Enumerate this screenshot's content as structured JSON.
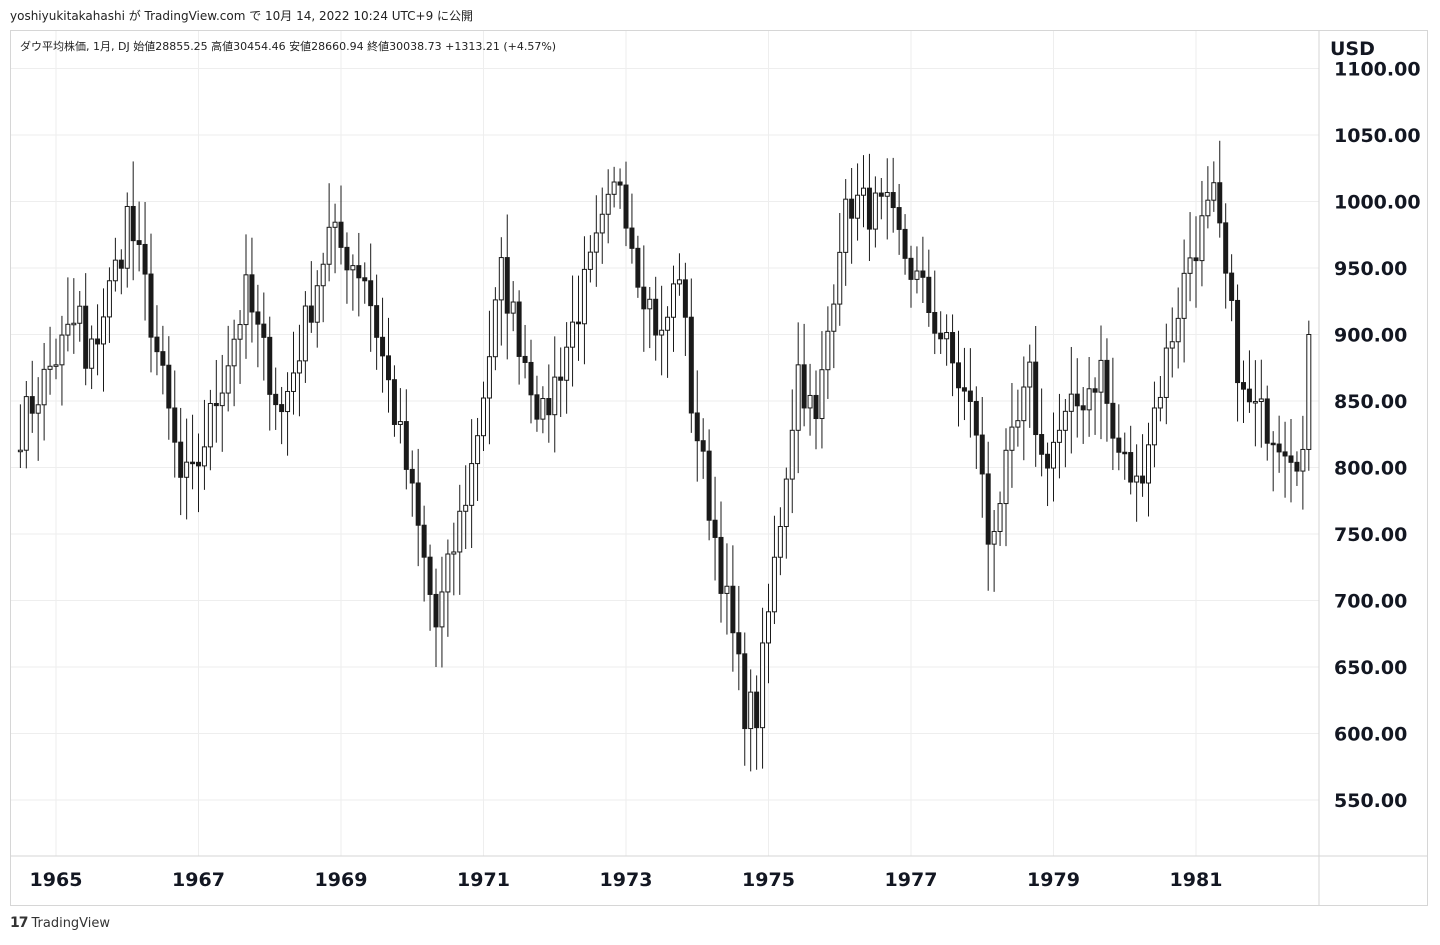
{
  "header": {
    "publish_line": "yoshiyukitakahashi が TradingView.com で 10月 14, 2022 10:24 UTC+9 に公開"
  },
  "legend": {
    "text": "ダウ平均株価, 1月, DJ  始値28855.25  高値30454.46  安値28660.94  終値30038.73  +1313.21 (+4.57%)"
  },
  "currency": "USD",
  "footer": {
    "logo": "17",
    "brand": "TradingView"
  },
  "colors": {
    "candle": "#1a1a1a",
    "grid": "#eeeeee",
    "border": "#d6d6d6"
  },
  "chart_data": {
    "type": "candlestick",
    "title": "",
    "xlabel": "",
    "ylabel": "",
    "ylim": [
      500,
      1100
    ],
    "y_ticks": [
      550,
      600,
      650,
      700,
      750,
      800,
      850,
      900,
      950,
      1000,
      1050,
      1100
    ],
    "y_tick_labels": [
      "550.00",
      "600.00",
      "650.00",
      "700.00",
      "750.00",
      "800.00",
      "850.00",
      "900.00",
      "950.00",
      "1000.00",
      "1050.00",
      "1100.00"
    ],
    "x_ticks": [
      1965,
      1967,
      1969,
      1971,
      1973,
      1975,
      1977,
      1979,
      1981
    ],
    "x_tick_labels": [
      "1965",
      "1967",
      "1969",
      "1971",
      "1973",
      "1975",
      "1977",
      "1979",
      "1981"
    ],
    "xlim": [
      1964.4,
      1982.8
    ],
    "grid": true,
    "price_path": [
      [
        "1964-07",
        830
      ],
      [
        "1964-12",
        875
      ],
      [
        "1965-05",
        915
      ],
      [
        "1965-06",
        870
      ],
      [
        "1965-12",
        965
      ],
      [
        "1966-01",
        990
      ],
      [
        "1966-04",
        935
      ],
      [
        "1966-10",
        790
      ],
      [
        "1966-12",
        790
      ],
      [
        "1967-09",
        930
      ],
      [
        "1968-03",
        840
      ],
      [
        "1968-11",
        975
      ],
      [
        "1969-05",
        945
      ],
      [
        "1969-12",
        800
      ],
      [
        "1970-05",
        680
      ],
      [
        "1970-11",
        800
      ],
      [
        "1971-04",
        945
      ],
      [
        "1971-11",
        835
      ],
      [
        "1972-12",
        1020
      ],
      [
        "1973-03",
        950
      ],
      [
        "1973-07",
        895
      ],
      [
        "1973-10",
        950
      ],
      [
        "1973-12",
        850
      ],
      [
        "1974-09",
        620
      ],
      [
        "1974-11",
        615
      ],
      [
        "1975-06",
        875
      ],
      [
        "1975-09",
        830
      ],
      [
        "1976-01",
        975
      ],
      [
        "1976-03",
        1000
      ],
      [
        "1976-09",
        990
      ],
      [
        "1977-06",
        900
      ],
      [
        "1977-12",
        830
      ],
      [
        "1978-02",
        745
      ],
      [
        "1978-09",
        865
      ],
      [
        "1978-11",
        805
      ],
      [
        "1979-09",
        875
      ],
      [
        "1979-11",
        820
      ],
      [
        "1980-03",
        785
      ],
      [
        "1980-12",
        960
      ],
      [
        "1981-04",
        1000
      ],
      [
        "1981-09",
        850
      ],
      [
        "1982-07",
        810
      ],
      [
        "1982-08",
        900
      ]
    ]
  }
}
